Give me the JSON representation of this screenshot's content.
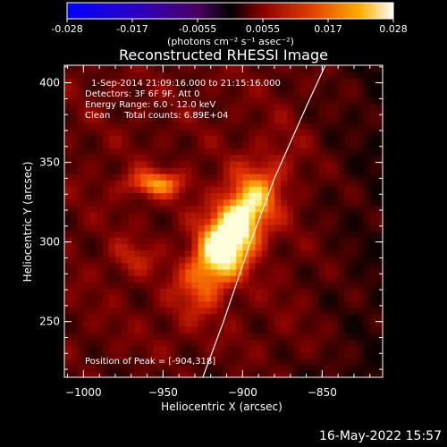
{
  "chart_data": {
    "type": "heatmap",
    "title": "Reconstructed RHESSI Image",
    "xlabel": "Heliocentric X (arcsec)",
    "ylabel": "Heliocentric Y (arcsec)",
    "xlim": [
      -1012,
      -812
    ],
    "ylim": [
      215,
      411
    ],
    "xticks": [
      -1000,
      -950,
      -900,
      -850
    ],
    "yticks": [
      250,
      300,
      350,
      400
    ],
    "colorbar": {
      "ticks": [
        "-0.028",
        "-0.017",
        "-0.0055",
        "0.0055",
        "0.017",
        "0.028"
      ],
      "units_label": "(photons cm⁻² s⁻¹ asec⁻²)",
      "range": [
        -0.028,
        0.028
      ]
    },
    "annotations": [
      "1-Sep-2014 21:09:16.000 to 21:15:16.000",
      "Detectors: 3F 6F 9F, Att 0",
      "Energy Range: 6.0 - 12.0 keV",
      "Clean     Total counts: 6.89E+04"
    ],
    "peak_label": "Position of Peak = [-904,318]",
    "peak": [
      -904,
      318
    ],
    "limb_points": [
      [
        -925,
        215
      ],
      [
        -912,
        250
      ],
      [
        -895,
        300
      ],
      [
        -880,
        340
      ],
      [
        -860,
        385
      ],
      [
        -848,
        411
      ]
    ],
    "sources": [
      {
        "x": -907,
        "y": 305,
        "sx": 12,
        "sy": 30,
        "angle": 30,
        "amp": 1.0
      },
      {
        "x": -955,
        "y": 337,
        "sx": 14,
        "sy": 6,
        "angle": 0,
        "amp": 0.5
      },
      {
        "x": -970,
        "y": 290,
        "sx": 10,
        "sy": 8,
        "angle": 0,
        "amp": 0.22
      }
    ]
  },
  "timestamp": "16-May-2022 15:57"
}
